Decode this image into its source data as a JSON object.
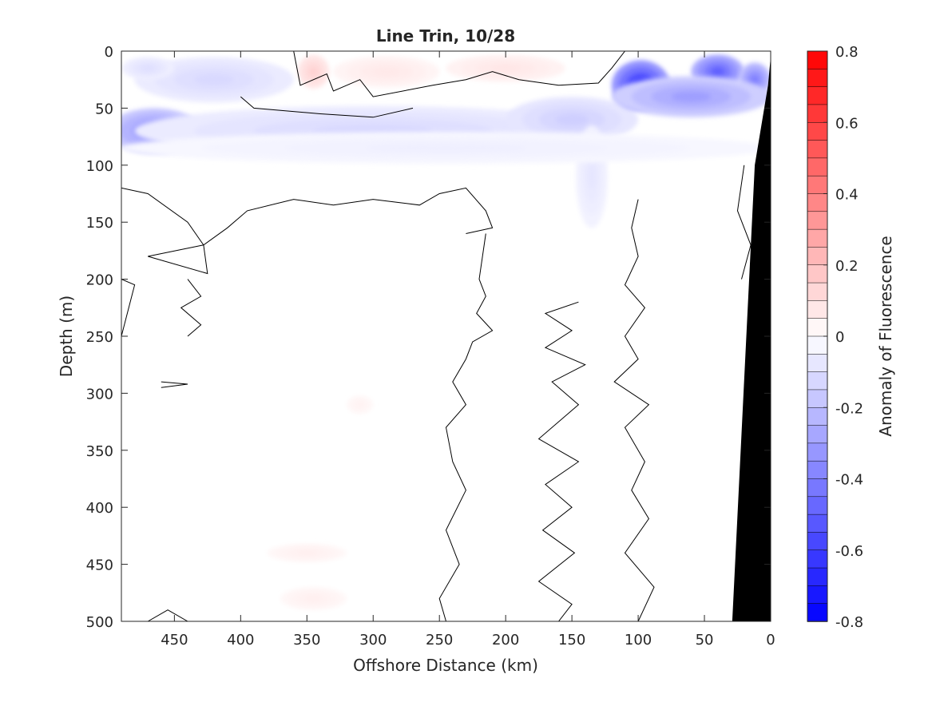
{
  "chart_data": {
    "type": "heatmap",
    "title": "Line Trin, 10/28",
    "xlabel": "Offshore Distance (km)",
    "ylabel": "Depth (m)",
    "colorbar_label": "Anomaly of Fluorescence",
    "x_reversed": true,
    "y_reversed": true,
    "xlim": [
      0,
      490
    ],
    "ylim": [
      0,
      500
    ],
    "clim": [
      -0.8,
      0.8
    ],
    "x_ticks": [
      450,
      400,
      350,
      300,
      250,
      200,
      150,
      100,
      50,
      0
    ],
    "y_ticks": [
      0,
      50,
      100,
      150,
      200,
      250,
      300,
      350,
      400,
      450,
      500
    ],
    "colorbar_ticks": [
      "0.8",
      "0.6",
      "0.4",
      "0.2",
      "0",
      "-0.2",
      "-0.4",
      "-0.6",
      "-0.8"
    ],
    "colorbar_levels": 32,
    "colormap": {
      "negative": "#0000ff",
      "zero": "#ffffff",
      "positive": "#ff0000"
    },
    "bathymetry_color": "#000000",
    "features": [
      {
        "type": "blob",
        "x": 465,
        "y": 70,
        "rx": 35,
        "ry": 20,
        "value": -0.35
      },
      {
        "type": "blob",
        "x": 420,
        "y": 25,
        "rx": 60,
        "ry": 20,
        "value": -0.12
      },
      {
        "type": "blob",
        "x": 470,
        "y": 15,
        "rx": 20,
        "ry": 10,
        "value": -0.1
      },
      {
        "type": "blob",
        "x": 300,
        "y": 70,
        "rx": 180,
        "ry": 22,
        "value": -0.12
      },
      {
        "type": "blob",
        "x": 150,
        "y": 60,
        "rx": 50,
        "ry": 20,
        "value": -0.15
      },
      {
        "type": "blob",
        "x": 135,
        "y": 110,
        "rx": 12,
        "ry": 45,
        "value": -0.08
      },
      {
        "type": "blob",
        "x": 98,
        "y": 30,
        "rx": 22,
        "ry": 22,
        "value": -0.65
      },
      {
        "type": "blob",
        "x": 40,
        "y": 18,
        "rx": 20,
        "ry": 15,
        "value": -0.5
      },
      {
        "type": "blob",
        "x": 12,
        "y": 25,
        "rx": 12,
        "ry": 15,
        "value": -0.4
      },
      {
        "type": "blob",
        "x": 60,
        "y": 40,
        "rx": 60,
        "ry": 18,
        "value": -0.3
      },
      {
        "type": "blob",
        "x": 245,
        "y": 85,
        "rx": 245,
        "ry": 14,
        "value": -0.05
      },
      {
        "type": "blob",
        "x": 345,
        "y": 18,
        "rx": 12,
        "ry": 15,
        "value": 0.14
      },
      {
        "type": "blob",
        "x": 290,
        "y": 18,
        "rx": 40,
        "ry": 14,
        "value": 0.07
      },
      {
        "type": "blob",
        "x": 200,
        "y": 15,
        "rx": 45,
        "ry": 12,
        "value": 0.08
      },
      {
        "type": "blob",
        "x": 350,
        "y": 440,
        "rx": 30,
        "ry": 8,
        "value": 0.05
      },
      {
        "type": "blob",
        "x": 345,
        "y": 480,
        "rx": 25,
        "ry": 10,
        "value": 0.05
      },
      {
        "type": "blob",
        "x": 310,
        "y": 310,
        "rx": 10,
        "ry": 8,
        "value": 0.04
      }
    ],
    "contour_level": 0
  }
}
